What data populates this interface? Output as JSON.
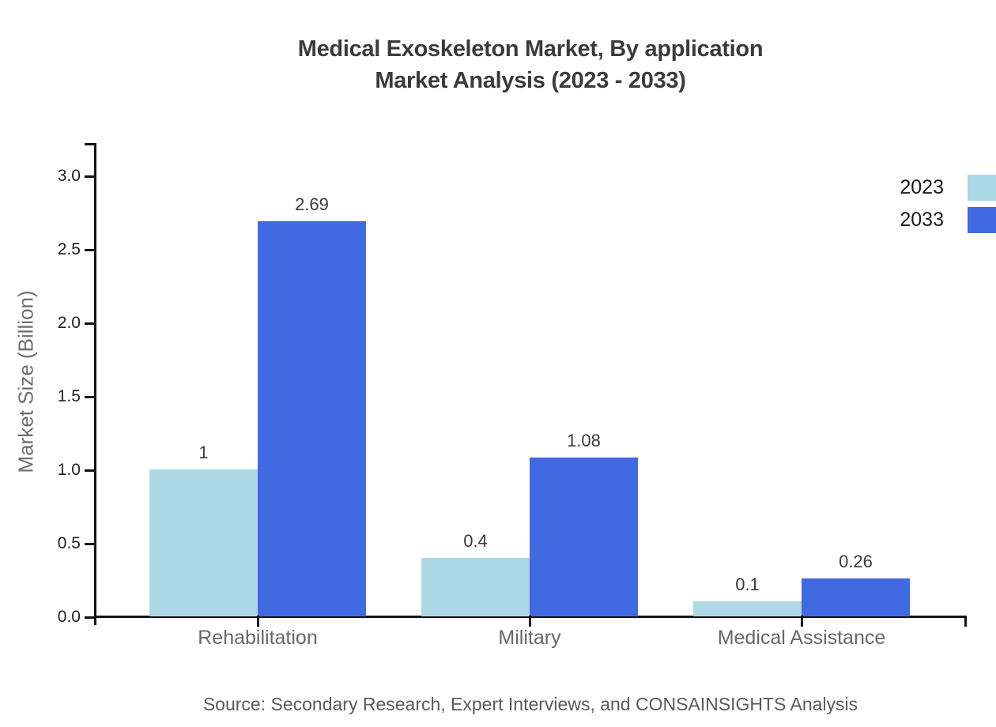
{
  "chart_data": {
    "type": "bar",
    "title": "Medical Exoskeleton Market, By application Market Analysis (2023 - 2033)",
    "title_lines": [
      "Medical Exoskeleton Market, By application",
      "Market Analysis (2023 - 2033)"
    ],
    "categories": [
      "Rehabilitation",
      "Military",
      "Medical Assistance"
    ],
    "series": [
      {
        "name": "2023",
        "color": "#ADD8E6",
        "values": [
          1,
          0.4,
          0.1
        ]
      },
      {
        "name": "2033",
        "color": "#4169E1",
        "values": [
          2.69,
          1.08,
          0.26
        ]
      }
    ],
    "xlabel": "",
    "ylabel": "Market Size (Billion)",
    "ylim": [
      0,
      3.0
    ],
    "yticks": [
      0,
      0.5,
      1,
      1.5,
      2,
      2.5,
      3
    ],
    "ytick_labels": [
      "0.0",
      "0.5",
      "1.0",
      "1.5",
      "2.0",
      "2.5",
      "3.0"
    ],
    "grid": false,
    "legend_position": "right",
    "value_labels_shown": true,
    "source": "Source: Secondary Research, Expert Interviews, and CONSAINSIGHTS Analysis"
  },
  "colors": {
    "background": "#ffffff",
    "series_2023": "#ADD8E6",
    "series_2033": "#4169E1",
    "title_text": "#3b3b3b",
    "axis_line": "#111111",
    "tick_label": "#1f1f1f",
    "category_label": "#686868",
    "axis_title": "#6e6e6e",
    "value_label": "#3a3a3a",
    "legend_label": "#1b1b1b",
    "source_text": "#5a5a5a"
  }
}
